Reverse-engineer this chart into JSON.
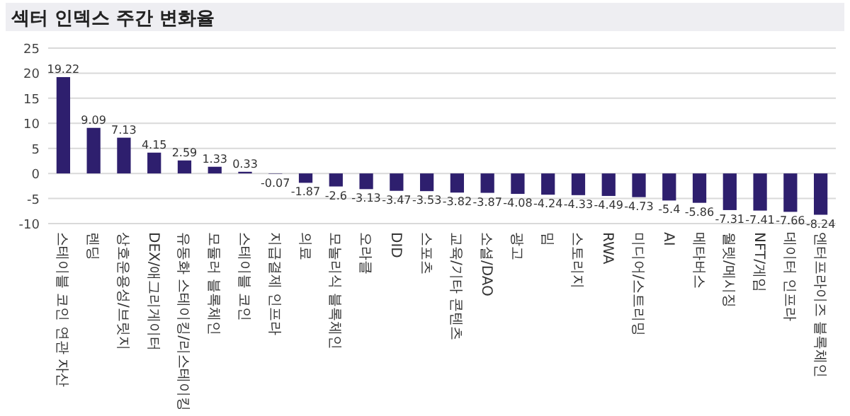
{
  "chart_data": {
    "type": "bar",
    "title": "섹터 인덱스 주간 변화율",
    "categories": [
      "스테이블 코인 연관 자산",
      "렌딩",
      "상호운용성/브릿지",
      "DEX/애그리게이터",
      "유동화 스테이킹/리스테이킹",
      "모듈러 블록체인",
      "스테이블 코인",
      "지급결제 인프라",
      "의료",
      "모놀리식 블록체인",
      "오라클",
      "DID",
      "스포츠",
      "교육/기타 콘텐츠",
      "소셜/DAO",
      "광고",
      "밈",
      "스토리지",
      "RWA",
      "미디어/스트리밍",
      "AI",
      "메타버스",
      "월렛/메시징",
      "NFT/게임",
      "데이터 인프라",
      "엔터프라이즈 블록체인"
    ],
    "values": [
      19.22,
      9.09,
      7.13,
      4.15,
      2.59,
      1.33,
      0.33,
      -0.07,
      -1.87,
      -2.6,
      -3.13,
      -3.47,
      -3.53,
      -3.82,
      -3.87,
      -4.08,
      -4.24,
      -4.33,
      -4.49,
      -4.73,
      -5.4,
      -5.86,
      -7.31,
      -7.41,
      -7.66,
      -8.24
    ],
    "color": "#2e1f6e",
    "ylim": [
      -10,
      25
    ],
    "yticks": [
      -10,
      -5,
      0,
      5,
      10,
      15,
      20,
      25
    ],
    "grid": "y",
    "data_labels": true
  }
}
